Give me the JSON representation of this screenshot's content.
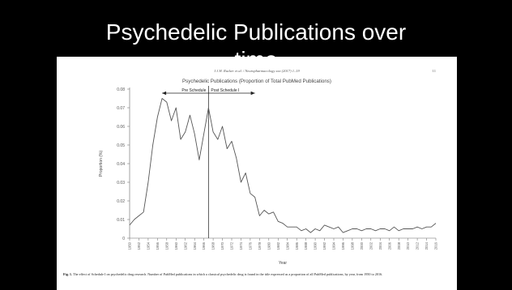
{
  "slide": {
    "title_line1": "Psychedelic Publications over",
    "title_line2": "time"
  },
  "paper": {
    "header": "J.J.H. Rucker et al. / Neuropharmacology xxx (2017) 1–19",
    "page_number": "11",
    "caption_label": "Fig. 1.",
    "caption_text": " The effect of Schedule I on psychedelic drug research. Number of PubMed publications in which a classical psychedelic drug is found in the title expressed as a proportion of all PubMed publications, by year, from 1950 to 2016."
  },
  "chart_data": {
    "type": "line",
    "title": "Psychedelic Publications (Proportion of Total PubMed Publications)",
    "xlabel": "Year",
    "ylabel": "Proportion (%)",
    "ylim": [
      0,
      0.08
    ],
    "yticks": [
      0,
      0.01,
      0.02,
      0.03,
      0.04,
      0.05,
      0.06,
      0.07,
      0.08
    ],
    "xlim": [
      1950,
      2016
    ],
    "xtick_step": 2,
    "grid": false,
    "line_color": "#555555",
    "annotations": {
      "schedule_year": 1967,
      "pre_label": "Pre Schedule",
      "post_label": "Post Schedule I",
      "arrow_start": 1957,
      "arrow_end": 1977
    },
    "series": [
      {
        "x": [
          1950,
          1951,
          1952,
          1953,
          1954,
          1955,
          1956,
          1957,
          1958,
          1959,
          1960,
          1961,
          1962,
          1963,
          1964,
          1965,
          1966,
          1967,
          1968,
          1969,
          1970,
          1971,
          1972,
          1973,
          1974,
          1975,
          1976,
          1977,
          1978,
          1979,
          1980,
          1981,
          1982,
          1983,
          1984,
          1985,
          1986,
          1987,
          1988,
          1989,
          1990,
          1991,
          1992,
          1993,
          1994,
          1995,
          1996,
          1997,
          1998,
          1999,
          2000,
          2001,
          2002,
          2003,
          2004,
          2005,
          2006,
          2007,
          2008,
          2009,
          2010,
          2011,
          2012,
          2013,
          2014,
          2015,
          2016
        ],
        "values": [
          0.007,
          0.01,
          0.012,
          0.014,
          0.03,
          0.05,
          0.065,
          0.075,
          0.073,
          0.063,
          0.07,
          0.053,
          0.057,
          0.066,
          0.056,
          0.042,
          0.056,
          0.07,
          0.057,
          0.053,
          0.06,
          0.048,
          0.052,
          0.043,
          0.03,
          0.035,
          0.024,
          0.022,
          0.012,
          0.015,
          0.013,
          0.014,
          0.009,
          0.008,
          0.006,
          0.006,
          0.006,
          0.004,
          0.005,
          0.003,
          0.005,
          0.004,
          0.007,
          0.006,
          0.005,
          0.006,
          0.003,
          0.004,
          0.005,
          0.005,
          0.004,
          0.005,
          0.005,
          0.004,
          0.005,
          0.005,
          0.004,
          0.006,
          0.004,
          0.005,
          0.005,
          0.005,
          0.006,
          0.005,
          0.006,
          0.006,
          0.008
        ]
      }
    ]
  }
}
